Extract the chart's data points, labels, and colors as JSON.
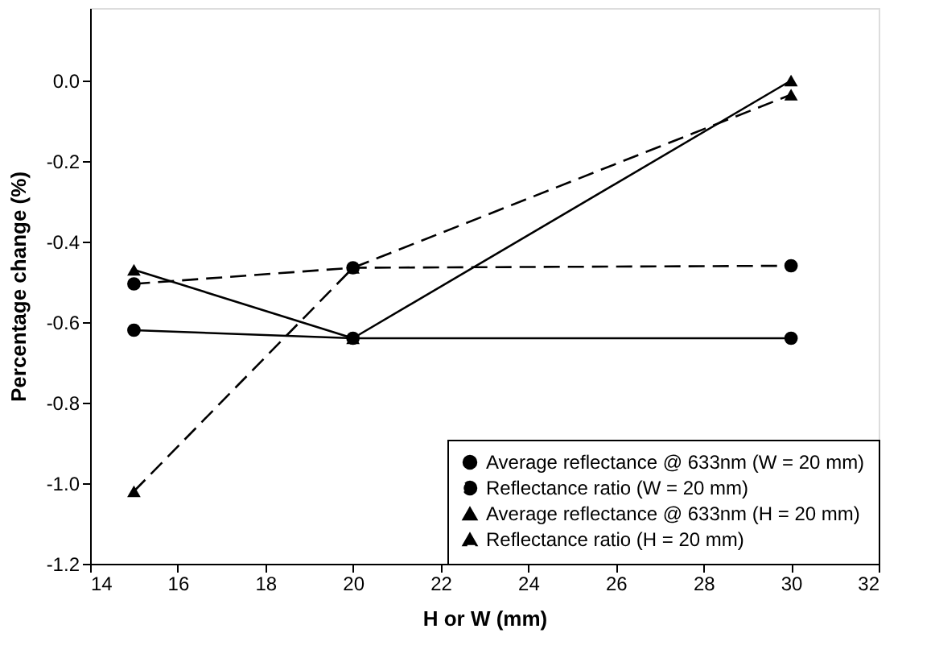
{
  "chart_data": {
    "type": "line",
    "xlabel": "H or W (mm)",
    "ylabel": "Percentage change (%)",
    "x": [
      15,
      20,
      30
    ],
    "xlim": [
      14,
      32
    ],
    "xticks": [
      14,
      16,
      18,
      20,
      22,
      24,
      26,
      28,
      30,
      32
    ],
    "ylim": [
      -1.2,
      0.18
    ],
    "yticks": [
      {
        "value": -1.2,
        "label": "-1.2"
      },
      {
        "value": -1.0,
        "label": "-1.0"
      },
      {
        "value": -0.8,
        "label": "-0.8"
      },
      {
        "value": -0.6,
        "label": "-0.6"
      },
      {
        "value": -0.4,
        "label": "-0.4"
      },
      {
        "value": -0.2,
        "label": "-0.2"
      },
      {
        "value": 0,
        "label": "0.0"
      }
    ],
    "grid": false,
    "legend": "bottom right",
    "series": [
      {
        "name": "Average reflectance @ 633nm (W = 20 mm)",
        "color": "#000000",
        "marker": "circle",
        "line_style": "solid",
        "values": [
          -0.62,
          -0.64,
          -0.64
        ]
      },
      {
        "name": "Reflectance ratio (W = 20 mm)",
        "color": "#000000",
        "marker": "circle",
        "line_style": "dashed",
        "values": [
          -0.505,
          -0.465,
          -0.46
        ]
      },
      {
        "name": "Average reflectance @ 633nm (H = 20 mm)",
        "color": "#000000",
        "marker": "triangle",
        "line_style": "solid",
        "values": [
          -0.47,
          -0.64,
          0.0
        ]
      },
      {
        "name": "Reflectance ratio (H = 20 mm)",
        "color": "#000000",
        "marker": "triangle",
        "line_style": "dashed",
        "values": [
          -1.02,
          -0.465,
          -0.035
        ]
      }
    ]
  }
}
